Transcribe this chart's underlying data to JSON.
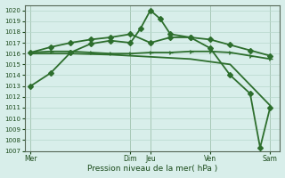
{
  "title": "",
  "xlabel": "Pression niveau de la mer( hPa )",
  "ylabel": "",
  "bg_color": "#d8eeea",
  "line_color": "#2d6e2d",
  "grid_color": "#b8d8cc",
  "ylim": [
    1007,
    1020.5
  ],
  "yticks": [
    1007,
    1008,
    1009,
    1010,
    1011,
    1012,
    1013,
    1014,
    1015,
    1016,
    1017,
    1018,
    1019,
    1020
  ],
  "xtick_labels": [
    "Mer",
    "Dim",
    "Jeu",
    "Ven",
    "Sam"
  ],
  "xtick_positions": [
    0,
    5,
    6,
    9,
    12
  ],
  "xlim": [
    -0.3,
    12.5
  ],
  "series": [
    {
      "x": [
        0,
        1,
        2,
        3,
        4,
        5,
        5.5,
        6,
        6.5,
        7,
        8,
        9,
        10,
        11,
        11.5,
        12
      ],
      "y": [
        1013.0,
        1014.2,
        1016.1,
        1016.9,
        1017.2,
        1017.0,
        1018.3,
        1020.0,
        1019.2,
        1017.8,
        1017.5,
        1016.5,
        1014.0,
        1012.3,
        1007.3,
        1011.0
      ],
      "marker": "D",
      "markersize": 3,
      "linewidth": 1.3
    },
    {
      "x": [
        0,
        1,
        2,
        3,
        4,
        5,
        6,
        7,
        8,
        9,
        10,
        11,
        12
      ],
      "y": [
        1016.1,
        1016.6,
        1017.0,
        1017.3,
        1017.5,
        1017.8,
        1017.0,
        1017.5,
        1017.5,
        1017.3,
        1016.8,
        1016.3,
        1015.8
      ],
      "marker": "D",
      "markersize": 3,
      "linewidth": 1.3
    },
    {
      "x": [
        0,
        1,
        2,
        3,
        4,
        5,
        6,
        7,
        8,
        9,
        10,
        11,
        12
      ],
      "y": [
        1016.1,
        1016.2,
        1016.2,
        1016.1,
        1016.0,
        1016.0,
        1016.1,
        1016.1,
        1016.2,
        1016.2,
        1016.1,
        1015.8,
        1015.5
      ],
      "marker": "4",
      "markersize": 4,
      "linewidth": 1.3
    },
    {
      "x": [
        0,
        2,
        4,
        6,
        8,
        10,
        12
      ],
      "y": [
        1016.0,
        1016.0,
        1015.9,
        1015.7,
        1015.5,
        1015.0,
        1011.2
      ],
      "marker": null,
      "markersize": 0,
      "linewidth": 1.3
    }
  ]
}
